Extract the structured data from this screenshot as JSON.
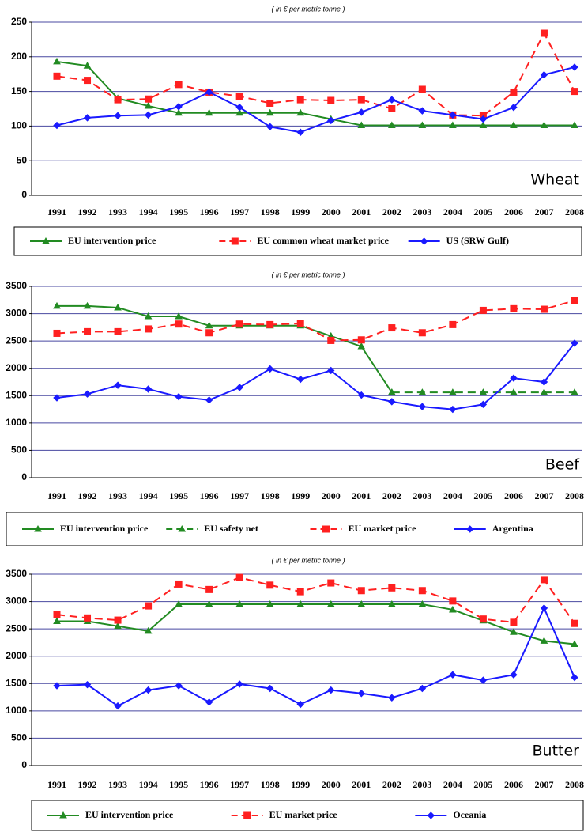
{
  "chart_data": [
    {
      "type": "line",
      "annotation": "( in € per metric tonne )",
      "label": "Wheat",
      "categories": [
        "1991",
        "1992",
        "1993",
        "1994",
        "1995",
        "1996",
        "1997",
        "1998",
        "1999",
        "2000",
        "2001",
        "2002",
        "2003",
        "2004",
        "2005",
        "2006",
        "2007",
        "2008"
      ],
      "ylim": [
        0,
        250
      ],
      "yticks": [
        0,
        50,
        100,
        150,
        200,
        250
      ],
      "grid": true,
      "series": [
        {
          "name": "EU intervention price",
          "color": "#228b22",
          "marker": "triangle",
          "line_style": "solid",
          "values": [
            193,
            187,
            140,
            129,
            119,
            119,
            119,
            119,
            119,
            110,
            101,
            101,
            101,
            101,
            101,
            101,
            101,
            101
          ]
        },
        {
          "name": "EU common wheat market price",
          "color": "#ff2020",
          "marker": "square",
          "line_style": "dashed",
          "values": [
            172,
            166,
            138,
            139,
            160,
            149,
            143,
            133,
            138,
            137,
            138,
            125,
            153,
            116,
            115,
            149,
            234,
            150
          ]
        },
        {
          "name": "US (SRW Gulf)",
          "color": "#1a1aff",
          "marker": "diamond",
          "line_style": "solid",
          "values": [
            101,
            112,
            115,
            116,
            128,
            149,
            127,
            99,
            91,
            108,
            120,
            138,
            122,
            116,
            110,
            127,
            174,
            185
          ]
        }
      ]
    },
    {
      "type": "line",
      "annotation": "( in € per metric tonne )",
      "label": "Beef",
      "categories": [
        "1991",
        "1992",
        "1993",
        "1994",
        "1995",
        "1996",
        "1997",
        "1998",
        "1999",
        "2000",
        "2001",
        "2002",
        "2003",
        "2004",
        "2005",
        "2006",
        "2007",
        "2008"
      ],
      "ylim": [
        0,
        3500
      ],
      "yticks": [
        0,
        500,
        1000,
        1500,
        2000,
        2500,
        3000,
        3500
      ],
      "grid": true,
      "series": [
        {
          "name": "EU intervention price",
          "color": "#228b22",
          "marker": "triangle",
          "line_style": "solid",
          "values": [
            3140,
            3140,
            3110,
            2950,
            2950,
            2780,
            2780,
            2780,
            2780,
            2590,
            2400,
            1560,
            null,
            null,
            null,
            null,
            null,
            null
          ]
        },
        {
          "name": "EU safety net",
          "color": "#228b22",
          "marker": "triangle",
          "line_style": "dashed",
          "values": [
            null,
            null,
            null,
            null,
            null,
            null,
            null,
            null,
            null,
            null,
            null,
            1560,
            1560,
            1560,
            1560,
            1560,
            1560,
            1560
          ]
        },
        {
          "name": "EU market price",
          "color": "#ff2020",
          "marker": "square",
          "line_style": "dashed",
          "values": [
            2640,
            2670,
            2670,
            2720,
            2810,
            2650,
            2810,
            2800,
            2820,
            2510,
            2520,
            2740,
            2650,
            2800,
            3060,
            3090,
            3080,
            3240
          ]
        },
        {
          "name": "Argentina",
          "color": "#1a1aff",
          "marker": "diamond",
          "line_style": "solid",
          "values": [
            1460,
            1530,
            1690,
            1620,
            1480,
            1420,
            1650,
            1990,
            1800,
            1960,
            1510,
            1390,
            1300,
            1250,
            1340,
            1820,
            1750,
            2460
          ]
        }
      ]
    },
    {
      "type": "line",
      "annotation": "( in € per metric tonne )",
      "label": "Butter",
      "categories": [
        "1991",
        "1992",
        "1993",
        "1994",
        "1995",
        "1996",
        "1997",
        "1998",
        "1999",
        "2000",
        "2001",
        "2002",
        "2003",
        "2004",
        "2005",
        "2006",
        "2007",
        "2008"
      ],
      "ylim": [
        0,
        3500
      ],
      "yticks": [
        0,
        500,
        1000,
        1500,
        2000,
        2500,
        3000,
        3500
      ],
      "grid": true,
      "series": [
        {
          "name": "EU intervention price",
          "color": "#228b22",
          "marker": "triangle",
          "line_style": "solid",
          "values": [
            2640,
            2640,
            2550,
            2460,
            2950,
            2950,
            2950,
            2950,
            2950,
            2950,
            2950,
            2950,
            2950,
            2850,
            2650,
            2440,
            2280,
            2220
          ]
        },
        {
          "name": "EU market price",
          "color": "#ff2020",
          "marker": "square",
          "line_style": "dashed",
          "values": [
            2760,
            2700,
            2660,
            2920,
            3320,
            3220,
            3440,
            3300,
            3180,
            3340,
            3200,
            3250,
            3200,
            3010,
            2680,
            2620,
            3400,
            2600
          ]
        },
        {
          "name": "Oceania",
          "color": "#1a1aff",
          "marker": "diamond",
          "line_style": "solid",
          "values": [
            1460,
            1480,
            1090,
            1380,
            1460,
            1160,
            1490,
            1410,
            1120,
            1380,
            1320,
            1240,
            1410,
            1660,
            1560,
            1660,
            2880,
            1610
          ]
        }
      ]
    }
  ]
}
